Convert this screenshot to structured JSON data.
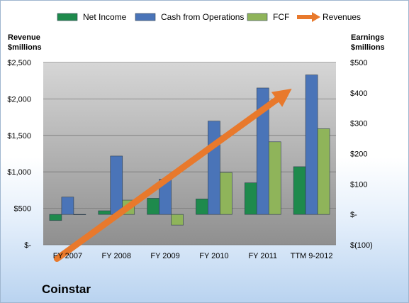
{
  "company_name": "Coinstar",
  "chart_data": {
    "type": "bar",
    "categories": [
      "FY 2007",
      "FY 2008",
      "FY 2009",
      "FY 2010",
      "FY 2011",
      "TTM 9-2012"
    ],
    "left_axis": {
      "title": [
        "Revenue",
        "$millions"
      ],
      "range": [
        0,
        2500
      ],
      "ticks": [
        0,
        500,
        1000,
        1500,
        2000,
        2500
      ],
      "tick_labels": [
        "$-",
        "$500",
        "$1,000",
        "$1,500",
        "$2,000",
        "$2,500"
      ]
    },
    "right_axis": {
      "title": [
        "Earnings",
        "$millions"
      ],
      "range": [
        -100,
        500
      ],
      "ticks": [
        -100,
        0,
        100,
        200,
        300,
        400,
        500
      ],
      "tick_labels": [
        "$(100)",
        "$-",
        "$100",
        "$200",
        "$300",
        "$400",
        "$500"
      ]
    },
    "series": [
      {
        "name": "Net Income",
        "axis": "right",
        "kind": "bar",
        "color": "#1e8a4c",
        "values": [
          -20,
          12,
          53,
          51,
          104,
          157
        ]
      },
      {
        "name": "Cash from Operations",
        "axis": "right",
        "kind": "bar",
        "color": "#4a74b8",
        "values": [
          57,
          192,
          116,
          307,
          416,
          459
        ]
      },
      {
        "name": "FCF",
        "axis": "right",
        "kind": "bar",
        "color": "#8fb45a",
        "values": [
          0,
          47,
          -35,
          138,
          239,
          282
        ]
      },
      {
        "name": "Revenues",
        "axis": "left",
        "kind": "arrow",
        "color": "#e8792c",
        "values": [
          -190,
          180,
          600,
          1100,
          1620,
          2140
        ]
      }
    ],
    "legend_position": "top",
    "grid": true
  }
}
